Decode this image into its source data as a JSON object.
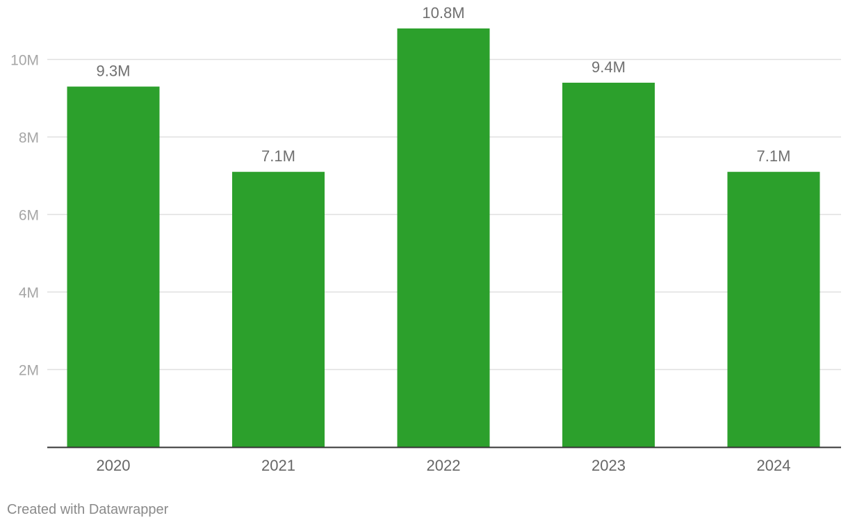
{
  "chart_data": {
    "type": "bar",
    "categories": [
      "2020",
      "2021",
      "2022",
      "2023",
      "2024"
    ],
    "values": [
      9.3,
      7.1,
      10.8,
      9.4,
      7.1
    ],
    "value_labels": [
      "9.3M",
      "7.1M",
      "10.8M",
      "9.4M",
      "7.1M"
    ],
    "unit": "M",
    "y_ticks": [
      2,
      4,
      6,
      8,
      10
    ],
    "y_tick_labels": [
      "2M",
      "4M",
      "6M",
      "8M",
      "10M"
    ],
    "ylim": [
      0,
      10.8
    ],
    "grid": true,
    "legend": "none",
    "bar_color": "#2ca02c",
    "gridline_color": "#e0e0e0",
    "baseline_color": "#333333"
  },
  "footer": {
    "credit": "Created with Datawrapper"
  }
}
